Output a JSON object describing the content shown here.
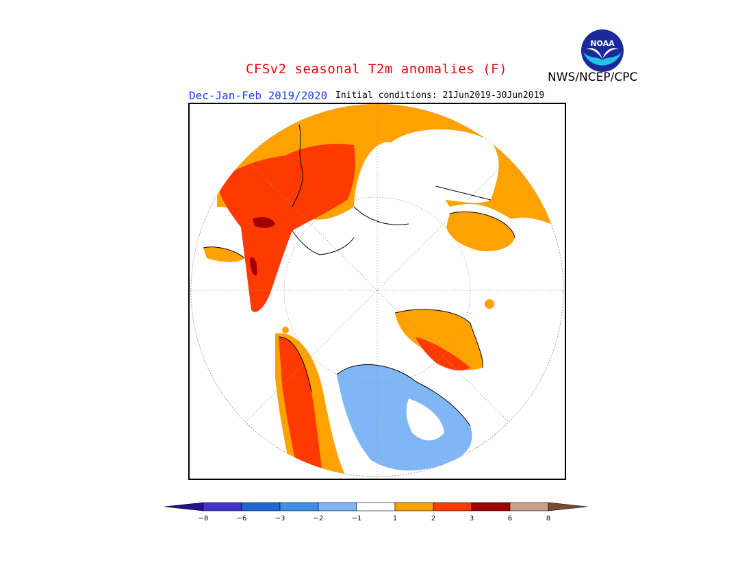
{
  "title": "CFSv2 seasonal T2m anomalies (F)",
  "agency": "NWS/NCEP/CPC",
  "season": "Dec-Jan-Feb 2019/2020",
  "initial_conditions": "Initial conditions: 21Jun2019-30Jun2019",
  "logo": {
    "text": "NOAA",
    "icon": "noaa-logo-icon"
  },
  "colors": {
    "title": "#e8000b",
    "season": "#1e3cff"
  },
  "legend": {
    "bins": [
      {
        "color": "#2a0f8c"
      },
      {
        "color": "#4433cc"
      },
      {
        "color": "#1f66d6"
      },
      {
        "color": "#3f8fea"
      },
      {
        "color": "#7fb6f5"
      },
      {
        "color": "#ffffff"
      },
      {
        "color": "#ffa200"
      },
      {
        "color": "#ff3a00"
      },
      {
        "color": "#a10000"
      },
      {
        "color": "#c8a08c"
      },
      {
        "color": "#7a4a35"
      }
    ],
    "ticks": [
      "−8",
      "−6",
      "−3",
      "−2",
      "−1",
      "1",
      "2",
      "3",
      "6",
      "8"
    ]
  }
}
